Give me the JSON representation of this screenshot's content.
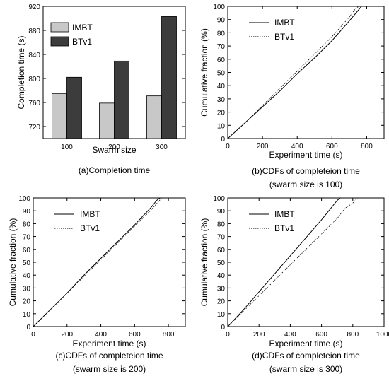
{
  "colors": {
    "imbt_bar": "#c8c8c8",
    "btv1_bar": "#3c3c3c",
    "line": "#000000"
  },
  "chart_data": [
    {
      "id": "a",
      "type": "bar",
      "caption": "(a)Completion time",
      "xlabel": "Swarm size",
      "ylabel": "Completion time (s)",
      "categories": [
        "100",
        "200",
        "300"
      ],
      "series": [
        {
          "name": "IMBT",
          "values": [
            775,
            759,
            771
          ]
        },
        {
          "name": "BTv1",
          "values": [
            802,
            829,
            903
          ]
        }
      ],
      "ylim": [
        700,
        920
      ],
      "yticks": [
        720,
        760,
        800,
        840,
        880,
        920
      ],
      "legend": "top-left"
    },
    {
      "id": "b",
      "type": "line",
      "caption": [
        "(b)CDFs of completeion time",
        "(swarm size is 100)"
      ],
      "xlabel": "Experiment time (s)",
      "ylabel": "Cumulative fraction (%)",
      "xlim": [
        0,
        900
      ],
      "ylim": [
        0,
        100
      ],
      "xticks": [
        0,
        200,
        400,
        600,
        800
      ],
      "yticks": [
        0,
        10,
        20,
        30,
        40,
        50,
        60,
        70,
        80,
        90,
        100
      ],
      "series": [
        {
          "name": "IMBT",
          "style": "solid",
          "points": [
            [
              0,
              0
            ],
            [
              100,
              12
            ],
            [
              200,
              24
            ],
            [
              300,
              36
            ],
            [
              400,
              49
            ],
            [
              500,
              61
            ],
            [
              600,
              74
            ],
            [
              700,
              89
            ],
            [
              745,
              96
            ],
            [
              770,
              100
            ]
          ]
        },
        {
          "name": "BTv1",
          "style": "dotted",
          "points": [
            [
              0,
              0
            ],
            [
              100,
              12
            ],
            [
              200,
              25
            ],
            [
              300,
              38
            ],
            [
              400,
              51
            ],
            [
              500,
              64
            ],
            [
              600,
              77
            ],
            [
              700,
              92
            ],
            [
              740,
              99
            ],
            [
              760,
              100
            ]
          ]
        }
      ],
      "legend": "top-right"
    },
    {
      "id": "c",
      "type": "line",
      "caption": [
        "(c)CDFs of completeion time",
        "(swarm size is 200)"
      ],
      "xlabel": "Experiment time (s)",
      "ylabel": "Cumulative fraction (%)",
      "xlim": [
        0,
        900
      ],
      "ylim": [
        0,
        100
      ],
      "xticks": [
        0,
        200,
        400,
        600,
        800
      ],
      "yticks": [
        0,
        10,
        20,
        30,
        40,
        50,
        60,
        70,
        80,
        90,
        100
      ],
      "series": [
        {
          "name": "IMBT",
          "style": "solid",
          "points": [
            [
              0,
              0
            ],
            [
              100,
              13
            ],
            [
              200,
              26
            ],
            [
              300,
              40
            ],
            [
              400,
              53
            ],
            [
              500,
              66
            ],
            [
              600,
              79
            ],
            [
              700,
              93
            ],
            [
              730,
              98
            ],
            [
              750,
              100
            ]
          ]
        },
        {
          "name": "BTv1",
          "style": "dotted",
          "points": [
            [
              0,
              0
            ],
            [
              100,
              13
            ],
            [
              200,
              26
            ],
            [
              300,
              39
            ],
            [
              400,
              52
            ],
            [
              500,
              65
            ],
            [
              600,
              78
            ],
            [
              700,
              91
            ],
            [
              740,
              97
            ],
            [
              760,
              100
            ]
          ]
        }
      ],
      "legend": "top-right"
    },
    {
      "id": "d",
      "type": "line",
      "caption": [
        "(d)CDFs of completeion time",
        "(swarm size is 300)"
      ],
      "xlabel": "Experiment time (s)",
      "ylabel": "Cumulative fraction (%)",
      "xlim": [
        0,
        1000
      ],
      "ylim": [
        0,
        100
      ],
      "xticks": [
        0,
        200,
        400,
        600,
        800,
        1000
      ],
      "yticks": [
        0,
        10,
        20,
        30,
        40,
        50,
        60,
        70,
        80,
        90,
        100
      ],
      "series": [
        {
          "name": "IMBT",
          "style": "solid",
          "points": [
            [
              0,
              0
            ],
            [
              100,
              13
            ],
            [
              200,
              27
            ],
            [
              300,
              41
            ],
            [
              400,
              55
            ],
            [
              500,
              69
            ],
            [
              600,
              83
            ],
            [
              700,
              98
            ],
            [
              720,
              100
            ],
            [
              770,
              100
            ]
          ]
        },
        {
          "name": "BTv1",
          "style": "dotted",
          "points": [
            [
              0,
              0
            ],
            [
              100,
              12
            ],
            [
              200,
              24
            ],
            [
              300,
              36
            ],
            [
              400,
              48
            ],
            [
              500,
              60
            ],
            [
              600,
              72
            ],
            [
              700,
              84
            ],
            [
              750,
              92
            ],
            [
              800,
              96
            ],
            [
              830,
              100
            ]
          ]
        }
      ],
      "legend": "top-right"
    }
  ]
}
